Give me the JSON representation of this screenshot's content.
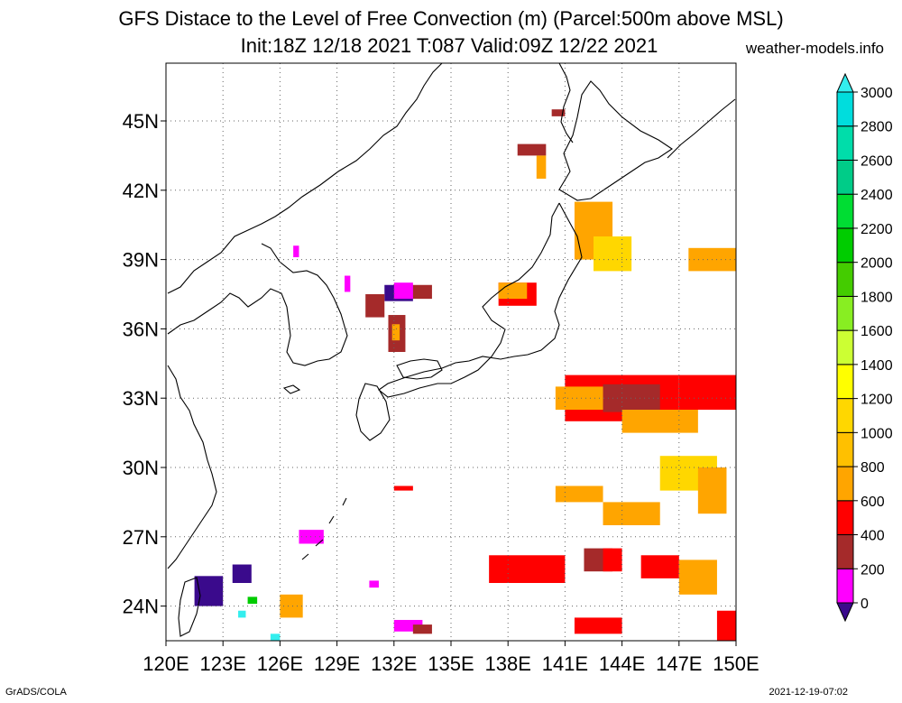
{
  "title_line1": "GFS Distace to the Level of Free Convection (m) (Parcel:500m above MSL)",
  "title_line2": "Init:18Z 12/18 2021 T:087 Valid:09Z 12/22 2021",
  "site": "weather-models.info",
  "credit_left": "GrADS/COLA",
  "credit_right": "2021-12-19-07:02",
  "map": {
    "lon_labels": [
      "120E",
      "123E",
      "126E",
      "129E",
      "132E",
      "135E",
      "138E",
      "141E",
      "144E",
      "147E",
      "150E"
    ],
    "lat_labels": [
      "24N",
      "27N",
      "30N",
      "33N",
      "36N",
      "39N",
      "42N",
      "45N"
    ],
    "lon_values": [
      120,
      123,
      126,
      129,
      132,
      135,
      138,
      141,
      144,
      147,
      150
    ],
    "lat_values": [
      24,
      27,
      30,
      33,
      36,
      39,
      42,
      45
    ],
    "lon_range": [
      120,
      150
    ],
    "lat_range": [
      22.5,
      47.5
    ],
    "grid": true
  },
  "colorbar": {
    "labels": [
      "0",
      "200",
      "400",
      "600",
      "800",
      "1000",
      "1200",
      "1400",
      "1600",
      "1800",
      "2000",
      "2200",
      "2400",
      "2600",
      "2800",
      "3000"
    ],
    "colors": [
      "#3a0a8c",
      "#ff00ff",
      "#a52a2a",
      "#ff0000",
      "#ffa500",
      "#ffc000",
      "#ffd700",
      "#ffff00",
      "#ccff33",
      "#88ee22",
      "#44cc00",
      "#00cc00",
      "#00dd33",
      "#00cc88",
      "#00ddaa",
      "#00dddd",
      "#33eeee"
    ]
  },
  "fields": [
    {
      "lon": [
        141,
        147
      ],
      "lat": [
        32,
        34
      ],
      "color": "#ff0000"
    },
    {
      "lon": [
        143,
        146
      ],
      "lat": [
        32.4,
        33.6
      ],
      "color": "#a52a2a"
    },
    {
      "lon": [
        140.5,
        143
      ],
      "lat": [
        32.5,
        33.5
      ],
      "color": "#ffa500"
    },
    {
      "lon": [
        144,
        148
      ],
      "lat": [
        31.5,
        32.5
      ],
      "color": "#ffa500"
    },
    {
      "lon": [
        147,
        150
      ],
      "lat": [
        32.5,
        34
      ],
      "color": "#ff0000"
    },
    {
      "lon": [
        141.5,
        143.5
      ],
      "lat": [
        39,
        41.5
      ],
      "color": "#ffa500"
    },
    {
      "lon": [
        142.5,
        144.5
      ],
      "lat": [
        38.5,
        40
      ],
      "color": "#ffd700"
    },
    {
      "lon": [
        147.5,
        150
      ],
      "lat": [
        38.5,
        39.5
      ],
      "color": "#ffa500"
    },
    {
      "lon": [
        137.5,
        139.5
      ],
      "lat": [
        37,
        38
      ],
      "color": "#ff0000"
    },
    {
      "lon": [
        137.5,
        139
      ],
      "lat": [
        37.3,
        38
      ],
      "color": "#ffa500"
    },
    {
      "lon": [
        131.5,
        133
      ],
      "lat": [
        37.2,
        37.9
      ],
      "color": "#3a0a8c"
    },
    {
      "lon": [
        133,
        134
      ],
      "lat": [
        37.3,
        37.9
      ],
      "color": "#a52a2a"
    },
    {
      "lon": [
        132,
        133
      ],
      "lat": [
        37.3,
        38
      ],
      "color": "#ff00ff"
    },
    {
      "lon": [
        130.5,
        131.5
      ],
      "lat": [
        36.5,
        37.5
      ],
      "color": "#a52a2a"
    },
    {
      "lon": [
        131.7,
        132.6
      ],
      "lat": [
        35,
        36.6
      ],
      "color": "#a52a2a"
    },
    {
      "lon": [
        131.9,
        132.3
      ],
      "lat": [
        35.5,
        36.2
      ],
      "color": "#ffa500"
    },
    {
      "lon": [
        137,
        141
      ],
      "lat": [
        25,
        26.2
      ],
      "color": "#ff0000"
    },
    {
      "lon": [
        142,
        143.5
      ],
      "lat": [
        25.5,
        26.5
      ],
      "color": "#a52a2a"
    },
    {
      "lon": [
        143,
        144
      ],
      "lat": [
        25.5,
        26.5
      ],
      "color": "#ff0000"
    },
    {
      "lon": [
        145,
        147
      ],
      "lat": [
        25.2,
        26.2
      ],
      "color": "#ff0000"
    },
    {
      "lon": [
        147,
        149
      ],
      "lat": [
        24.5,
        26
      ],
      "color": "#ffa500"
    },
    {
      "lon": [
        146,
        149
      ],
      "lat": [
        29,
        30.5
      ],
      "color": "#ffd700"
    },
    {
      "lon": [
        148,
        149.5
      ],
      "lat": [
        28,
        30
      ],
      "color": "#ffa500"
    },
    {
      "lon": [
        143,
        146
      ],
      "lat": [
        27.5,
        28.5
      ],
      "color": "#ffa500"
    },
    {
      "lon": [
        140.5,
        143
      ],
      "lat": [
        28.5,
        29.2
      ],
      "color": "#ffa500"
    },
    {
      "lon": [
        126,
        127.2
      ],
      "lat": [
        23.5,
        24.5
      ],
      "color": "#ffa500"
    },
    {
      "lon": [
        121.5,
        123
      ],
      "lat": [
        24,
        25.3
      ],
      "color": "#3a0a8c"
    },
    {
      "lon": [
        123.5,
        124.5
      ],
      "lat": [
        25,
        25.8
      ],
      "color": "#3a0a8c"
    },
    {
      "lon": [
        132,
        133.5
      ],
      "lat": [
        22.9,
        23.4
      ],
      "color": "#ff00ff"
    },
    {
      "lon": [
        133,
        134
      ],
      "lat": [
        22.8,
        23.2
      ],
      "color": "#a52a2a"
    },
    {
      "lon": [
        132,
        133
      ],
      "lat": [
        29,
        29.2
      ],
      "color": "#ff0000"
    },
    {
      "lon": [
        149,
        150
      ],
      "lat": [
        22.5,
        23.8
      ],
      "color": "#ff0000"
    },
    {
      "lon": [
        141.5,
        144
      ],
      "lat": [
        22.8,
        23.5
      ],
      "color": "#ff0000"
    },
    {
      "lon": [
        138.5,
        140
      ],
      "lat": [
        43.5,
        44
      ],
      "color": "#a52a2a"
    },
    {
      "lon": [
        139.5,
        140
      ],
      "lat": [
        42.5,
        43.5
      ],
      "color": "#ffa500"
    },
    {
      "lon": [
        140.3,
        141
      ],
      "lat": [
        45.2,
        45.5
      ],
      "color": "#a52a2a"
    },
    {
      "lon": [
        127,
        128.3
      ],
      "lat": [
        26.7,
        27.3
      ],
      "color": "#ff00ff"
    },
    {
      "lon": [
        130.7,
        131.2
      ],
      "lat": [
        24.8,
        25.1
      ],
      "color": "#ff00ff"
    },
    {
      "lon": [
        124.3,
        124.8
      ],
      "lat": [
        24.1,
        24.4
      ],
      "color": "#00cc00"
    },
    {
      "lon": [
        123.8,
        124.2
      ],
      "lat": [
        23.5,
        23.8
      ],
      "color": "#33eeee"
    },
    {
      "lon": [
        125.5,
        126
      ],
      "lat": [
        22.5,
        22.8
      ],
      "color": "#33eeee"
    },
    {
      "lon": [
        129.4,
        129.7
      ],
      "lat": [
        37.6,
        38.3
      ],
      "color": "#ff00ff"
    },
    {
      "lon": [
        126.7,
        127
      ],
      "lat": [
        39.1,
        39.6
      ],
      "color": "#ff00ff"
    }
  ]
}
